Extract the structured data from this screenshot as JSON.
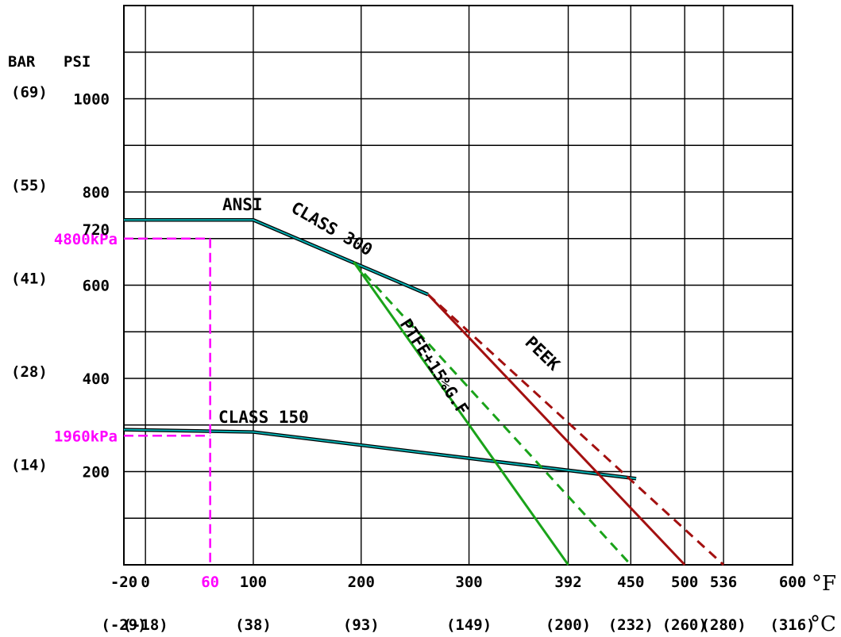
{
  "chart_data": {
    "type": "line",
    "x_unit": "°F",
    "x_unit_c": "°C",
    "y_unit_bar": "BAR",
    "y_unit_psi": "PSI",
    "xlim": [
      -20,
      600
    ],
    "ylim": [
      0,
      1200
    ],
    "grid": true,
    "x_ticks": [
      {
        "f": -20,
        "label": "-20",
        "c_label": "(-29)"
      },
      {
        "f": 0,
        "label": "0",
        "c_label": "(-18)"
      },
      {
        "f": 100,
        "label": "100",
        "c_label": "(38)"
      },
      {
        "f": 200,
        "label": "200",
        "c_label": "(93)"
      },
      {
        "f": 300,
        "label": "300",
        "c_label": "(149)"
      },
      {
        "f": 392,
        "label": "392",
        "c_label": "(200)"
      },
      {
        "f": 450,
        "label": "450",
        "c_label": "(232)"
      },
      {
        "f": 500,
        "label": "500",
        "c_label": "(260)"
      },
      {
        "f": 536,
        "label": "536",
        "c_label": "(280)"
      },
      {
        "f": 600,
        "label": "600",
        "c_label": "(316)"
      }
    ],
    "y_ticks": [
      {
        "psi": 1000,
        "label": "1000",
        "bar_label": "(69)"
      },
      {
        "psi": 800,
        "label": "800",
        "bar_label": "(55)"
      },
      {
        "psi": 720,
        "label": "720",
        "bar_label": ""
      },
      {
        "psi": 600,
        "label": "600",
        "bar_label": "(41)"
      },
      {
        "psi": 400,
        "label": "400",
        "bar_label": "(28)"
      },
      {
        "psi": 200,
        "label": "200",
        "bar_label": "(14)"
      }
    ],
    "series": [
      {
        "name": "ANSI CLASS 300",
        "color": "#00aeb0",
        "style": "double",
        "points": [
          [
            -20,
            740
          ],
          [
            100,
            740
          ],
          [
            262,
            580
          ]
        ]
      },
      {
        "name": "CLASS 150",
        "color": "#00aeb0",
        "style": "double",
        "points": [
          [
            -20,
            290
          ],
          [
            100,
            285
          ],
          [
            455,
            185
          ]
        ]
      },
      {
        "name": "PTFE+15%G.F",
        "color": "#1aa31a",
        "style": "solid",
        "points": [
          [
            193,
            650
          ],
          [
            392,
            0
          ]
        ]
      },
      {
        "name": "",
        "color": "#1aa31a",
        "style": "dashed",
        "points": [
          [
            193,
            650
          ],
          [
            450,
            0
          ]
        ]
      },
      {
        "name": "PEEK",
        "color": "#a31010",
        "style": "solid",
        "points": [
          [
            262,
            580
          ],
          [
            500,
            0
          ]
        ]
      },
      {
        "name": "",
        "color": "#a31010",
        "style": "dashed",
        "points": [
          [
            262,
            580
          ],
          [
            536,
            0
          ]
        ]
      }
    ],
    "annotations": [
      {
        "label": "4800kPa",
        "psi": 700,
        "to_f": 60,
        "color": "#ff00ff"
      },
      {
        "label": "1960kPa",
        "psi": 277,
        "to_f": 60,
        "color": "#ff00ff"
      },
      {
        "label": "60",
        "f": 60,
        "color": "#ff00ff"
      }
    ]
  }
}
